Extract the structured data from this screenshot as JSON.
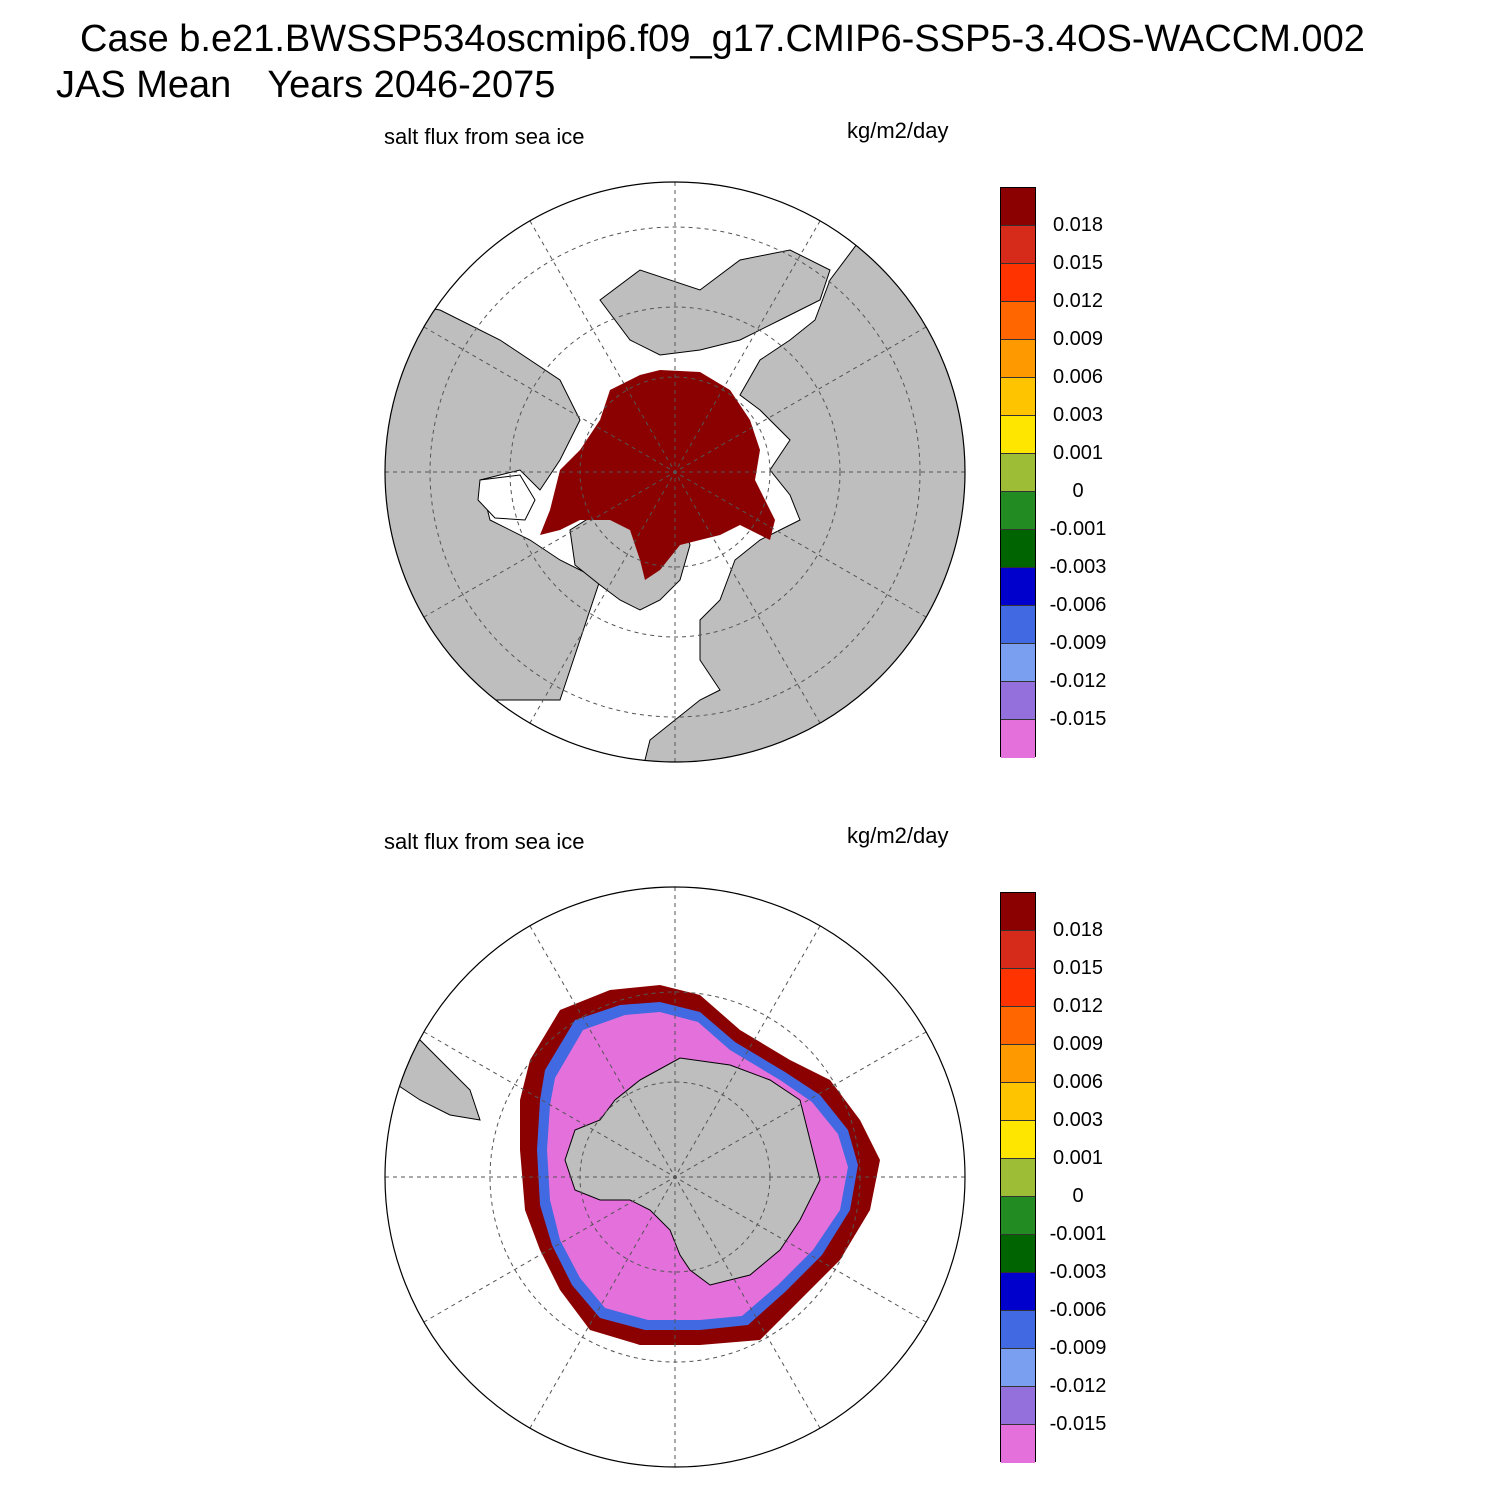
{
  "header": {
    "case_line": "Case b.e21.BWSSP534oscmip6.f09_g17.CMIP6-SSP5-3.4OS-WACCM.002",
    "season": "JAS Mean",
    "years": "Years 2046-2075"
  },
  "panels": [
    {
      "id": "north",
      "title": "salt flux from sea ice",
      "units": "kg/m2/day"
    },
    {
      "id": "south",
      "title": "salt flux from sea ice",
      "units": "kg/m2/day"
    }
  ],
  "colorbar": {
    "colors": [
      "#8b0000",
      "#d62b1a",
      "#ff3300",
      "#ff6600",
      "#ff9900",
      "#ffc400",
      "#ffe600",
      "#9cbd35",
      "#228b22",
      "#006400",
      "#0000cd",
      "#4169e1",
      "#7b9ff0",
      "#9370db",
      "#e370db"
    ],
    "labels": [
      "0.018",
      "0.015",
      "0.012",
      "0.009",
      "0.006",
      "0.003",
      "0.001",
      "0",
      "-0.001",
      "-0.003",
      "-0.006",
      "-0.009",
      "-0.012",
      "-0.015"
    ]
  },
  "map_colors": {
    "land": "#bebebe",
    "ocean": "#ffffff",
    "ice_high": "#8b0000",
    "ice_neg": "#e370db"
  }
}
